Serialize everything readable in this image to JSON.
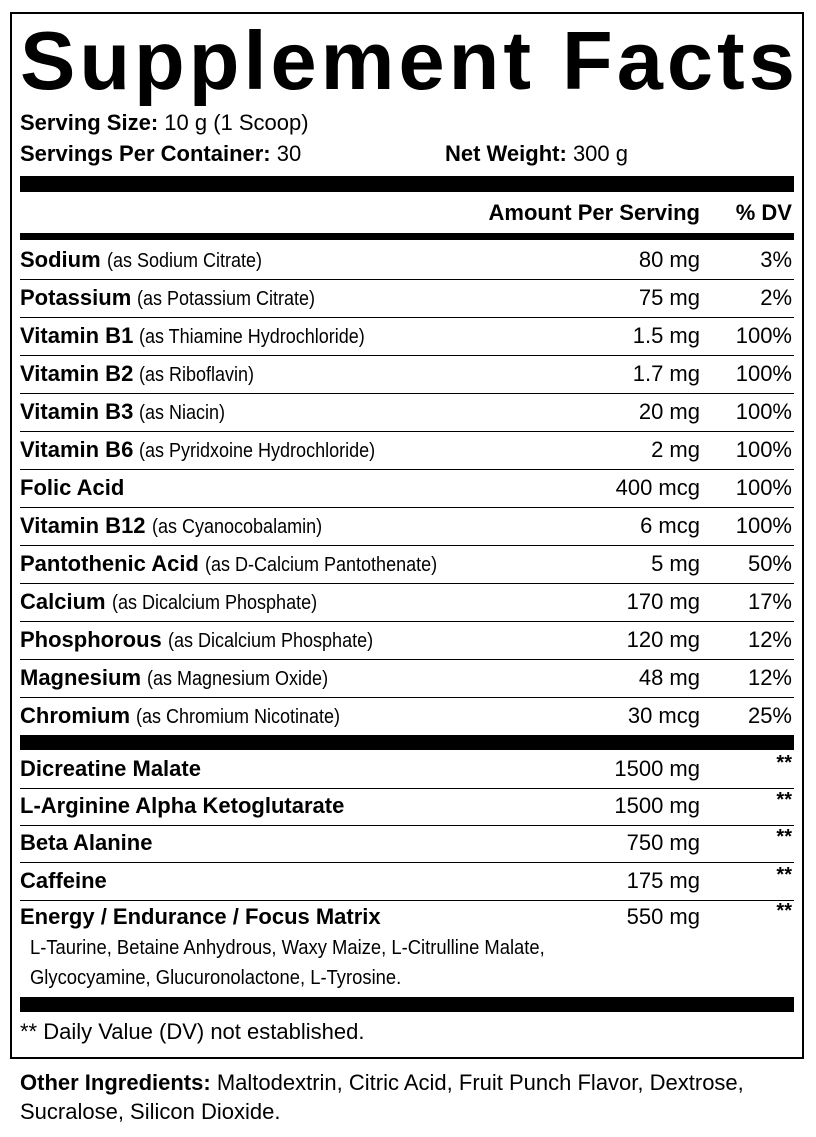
{
  "title": "Supplement Facts",
  "serving_size_label": "Serving Size:",
  "serving_size": "10 g (1 Scoop)",
  "servings_label": "Servings Per Container:",
  "servings": "30",
  "net_weight_label": "Net Weight:",
  "net_weight": "300 g",
  "header": {
    "amount": "Amount Per Serving",
    "dv": "% DV"
  },
  "nutrients": [
    {
      "name": "Sodium",
      "source": "(as Sodium Citrate)",
      "amount": "80 mg",
      "dv": "3%"
    },
    {
      "name": "Potassium",
      "source": "(as Potassium Citrate)",
      "amount": "75 mg",
      "dv": "2%"
    },
    {
      "name": "Vitamin B1",
      "source": "(as Thiamine Hydrochloride)",
      "amount": "1.5 mg",
      "dv": "100%"
    },
    {
      "name": "Vitamin B2",
      "source": "(as Riboflavin)",
      "amount": "1.7 mg",
      "dv": "100%"
    },
    {
      "name": "Vitamin B3",
      "source": "(as Niacin)",
      "amount": "20 mg",
      "dv": "100%"
    },
    {
      "name": "Vitamin B6",
      "source": "(as Pyridxoine Hydrochloride)",
      "amount": "2 mg",
      "dv": "100%"
    },
    {
      "name": "Folic Acid",
      "source": "",
      "amount": "400 mcg",
      "dv": "100%"
    },
    {
      "name": "Vitamin B12",
      "source": "(as Cyanocobalamin)",
      "amount": "6 mcg",
      "dv": "100%"
    },
    {
      "name": "Pantothenic Acid",
      "source": "(as D-Calcium Pantothenate)",
      "amount": "5 mg",
      "dv": "50%"
    },
    {
      "name": "Calcium",
      "source": "(as Dicalcium Phosphate)",
      "amount": "170 mg",
      "dv": "17%"
    },
    {
      "name": "Phosphorous",
      "source": "(as Dicalcium Phosphate)",
      "amount": "120 mg",
      "dv": "12%"
    },
    {
      "name": "Magnesium",
      "source": "(as Magnesium Oxide)",
      "amount": "48 mg",
      "dv": "12%"
    },
    {
      "name": "Chromium",
      "source": "(as Chromium Nicotinate)",
      "amount": "30 mcg",
      "dv": "25%"
    }
  ],
  "others": [
    {
      "name": "Dicreatine Malate",
      "amount": "1500 mg",
      "dv": "**"
    },
    {
      "name": "L-Arginine Alpha Ketoglutarate",
      "amount": "1500 mg",
      "dv": "**"
    },
    {
      "name": "Beta Alanine",
      "amount": "750 mg",
      "dv": "**"
    },
    {
      "name": "Caffeine",
      "amount": "175 mg",
      "dv": "**"
    },
    {
      "name": "Energy / Endurance / Focus Matrix",
      "amount": "550 mg",
      "dv": "**"
    }
  ],
  "matrix_line1": "L-Taurine, Betaine Anhydrous, Waxy Maize, L-Citrulline Malate,",
  "matrix_line2": "Glycocyamine, Glucuronolactone, L-Tyrosine.",
  "footnote": "** Daily Value (DV) not established.",
  "other_ingredients_label": "Other Ingredients:",
  "other_ingredients": "Maltodextrin, Citric Acid, Fruit Punch Flavor, Dextrose, Sucralose, Silicon Dioxide."
}
